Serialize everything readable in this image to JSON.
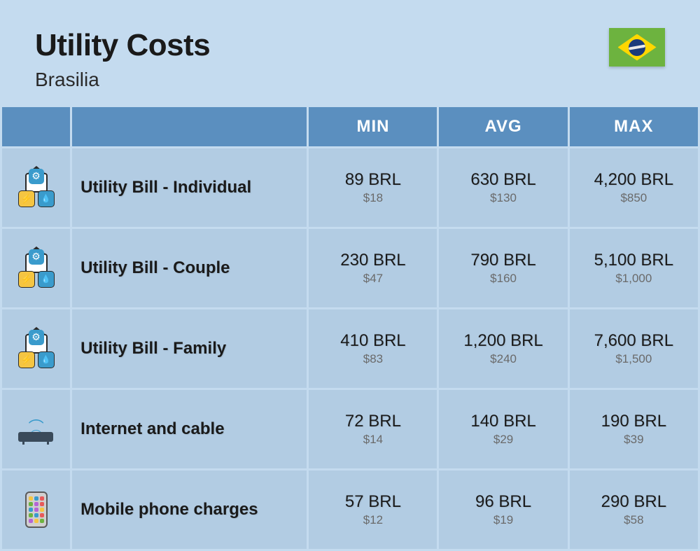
{
  "header": {
    "title": "Utility Costs",
    "subtitle": "Brasilia",
    "flag": {
      "name": "brazil-flag",
      "bg_color": "#6db33f",
      "diamond_color": "#ffd700",
      "circle_color": "#1a3a7a"
    }
  },
  "table": {
    "type": "table",
    "background_color": "#c4dbef",
    "header_bg_color": "#5b8fbf",
    "header_text_color": "#ffffff",
    "row_bg_color": "#b2cce3",
    "label_fontsize": 24,
    "value_primary_fontsize": 24,
    "value_secondary_fontsize": 17,
    "value_secondary_color": "#6a6a6a",
    "columns": [
      "",
      "",
      "MIN",
      "AVG",
      "MAX"
    ],
    "rows": [
      {
        "icon": "utility-icon",
        "label": "Utility Bill - Individual",
        "min": {
          "primary": "89 BRL",
          "secondary": "$18"
        },
        "avg": {
          "primary": "630 BRL",
          "secondary": "$130"
        },
        "max": {
          "primary": "4,200 BRL",
          "secondary": "$850"
        }
      },
      {
        "icon": "utility-icon",
        "label": "Utility Bill - Couple",
        "min": {
          "primary": "230 BRL",
          "secondary": "$47"
        },
        "avg": {
          "primary": "790 BRL",
          "secondary": "$160"
        },
        "max": {
          "primary": "5,100 BRL",
          "secondary": "$1,000"
        }
      },
      {
        "icon": "utility-icon",
        "label": "Utility Bill - Family",
        "min": {
          "primary": "410 BRL",
          "secondary": "$83"
        },
        "avg": {
          "primary": "1,200 BRL",
          "secondary": "$240"
        },
        "max": {
          "primary": "7,600 BRL",
          "secondary": "$1,500"
        }
      },
      {
        "icon": "router-icon",
        "label": "Internet and cable",
        "min": {
          "primary": "72 BRL",
          "secondary": "$14"
        },
        "avg": {
          "primary": "140 BRL",
          "secondary": "$29"
        },
        "max": {
          "primary": "190 BRL",
          "secondary": "$39"
        }
      },
      {
        "icon": "phone-icon",
        "label": "Mobile phone charges",
        "min": {
          "primary": "57 BRL",
          "secondary": "$12"
        },
        "avg": {
          "primary": "96 BRL",
          "secondary": "$19"
        },
        "max": {
          "primary": "290 BRL",
          "secondary": "$58"
        }
      }
    ]
  }
}
